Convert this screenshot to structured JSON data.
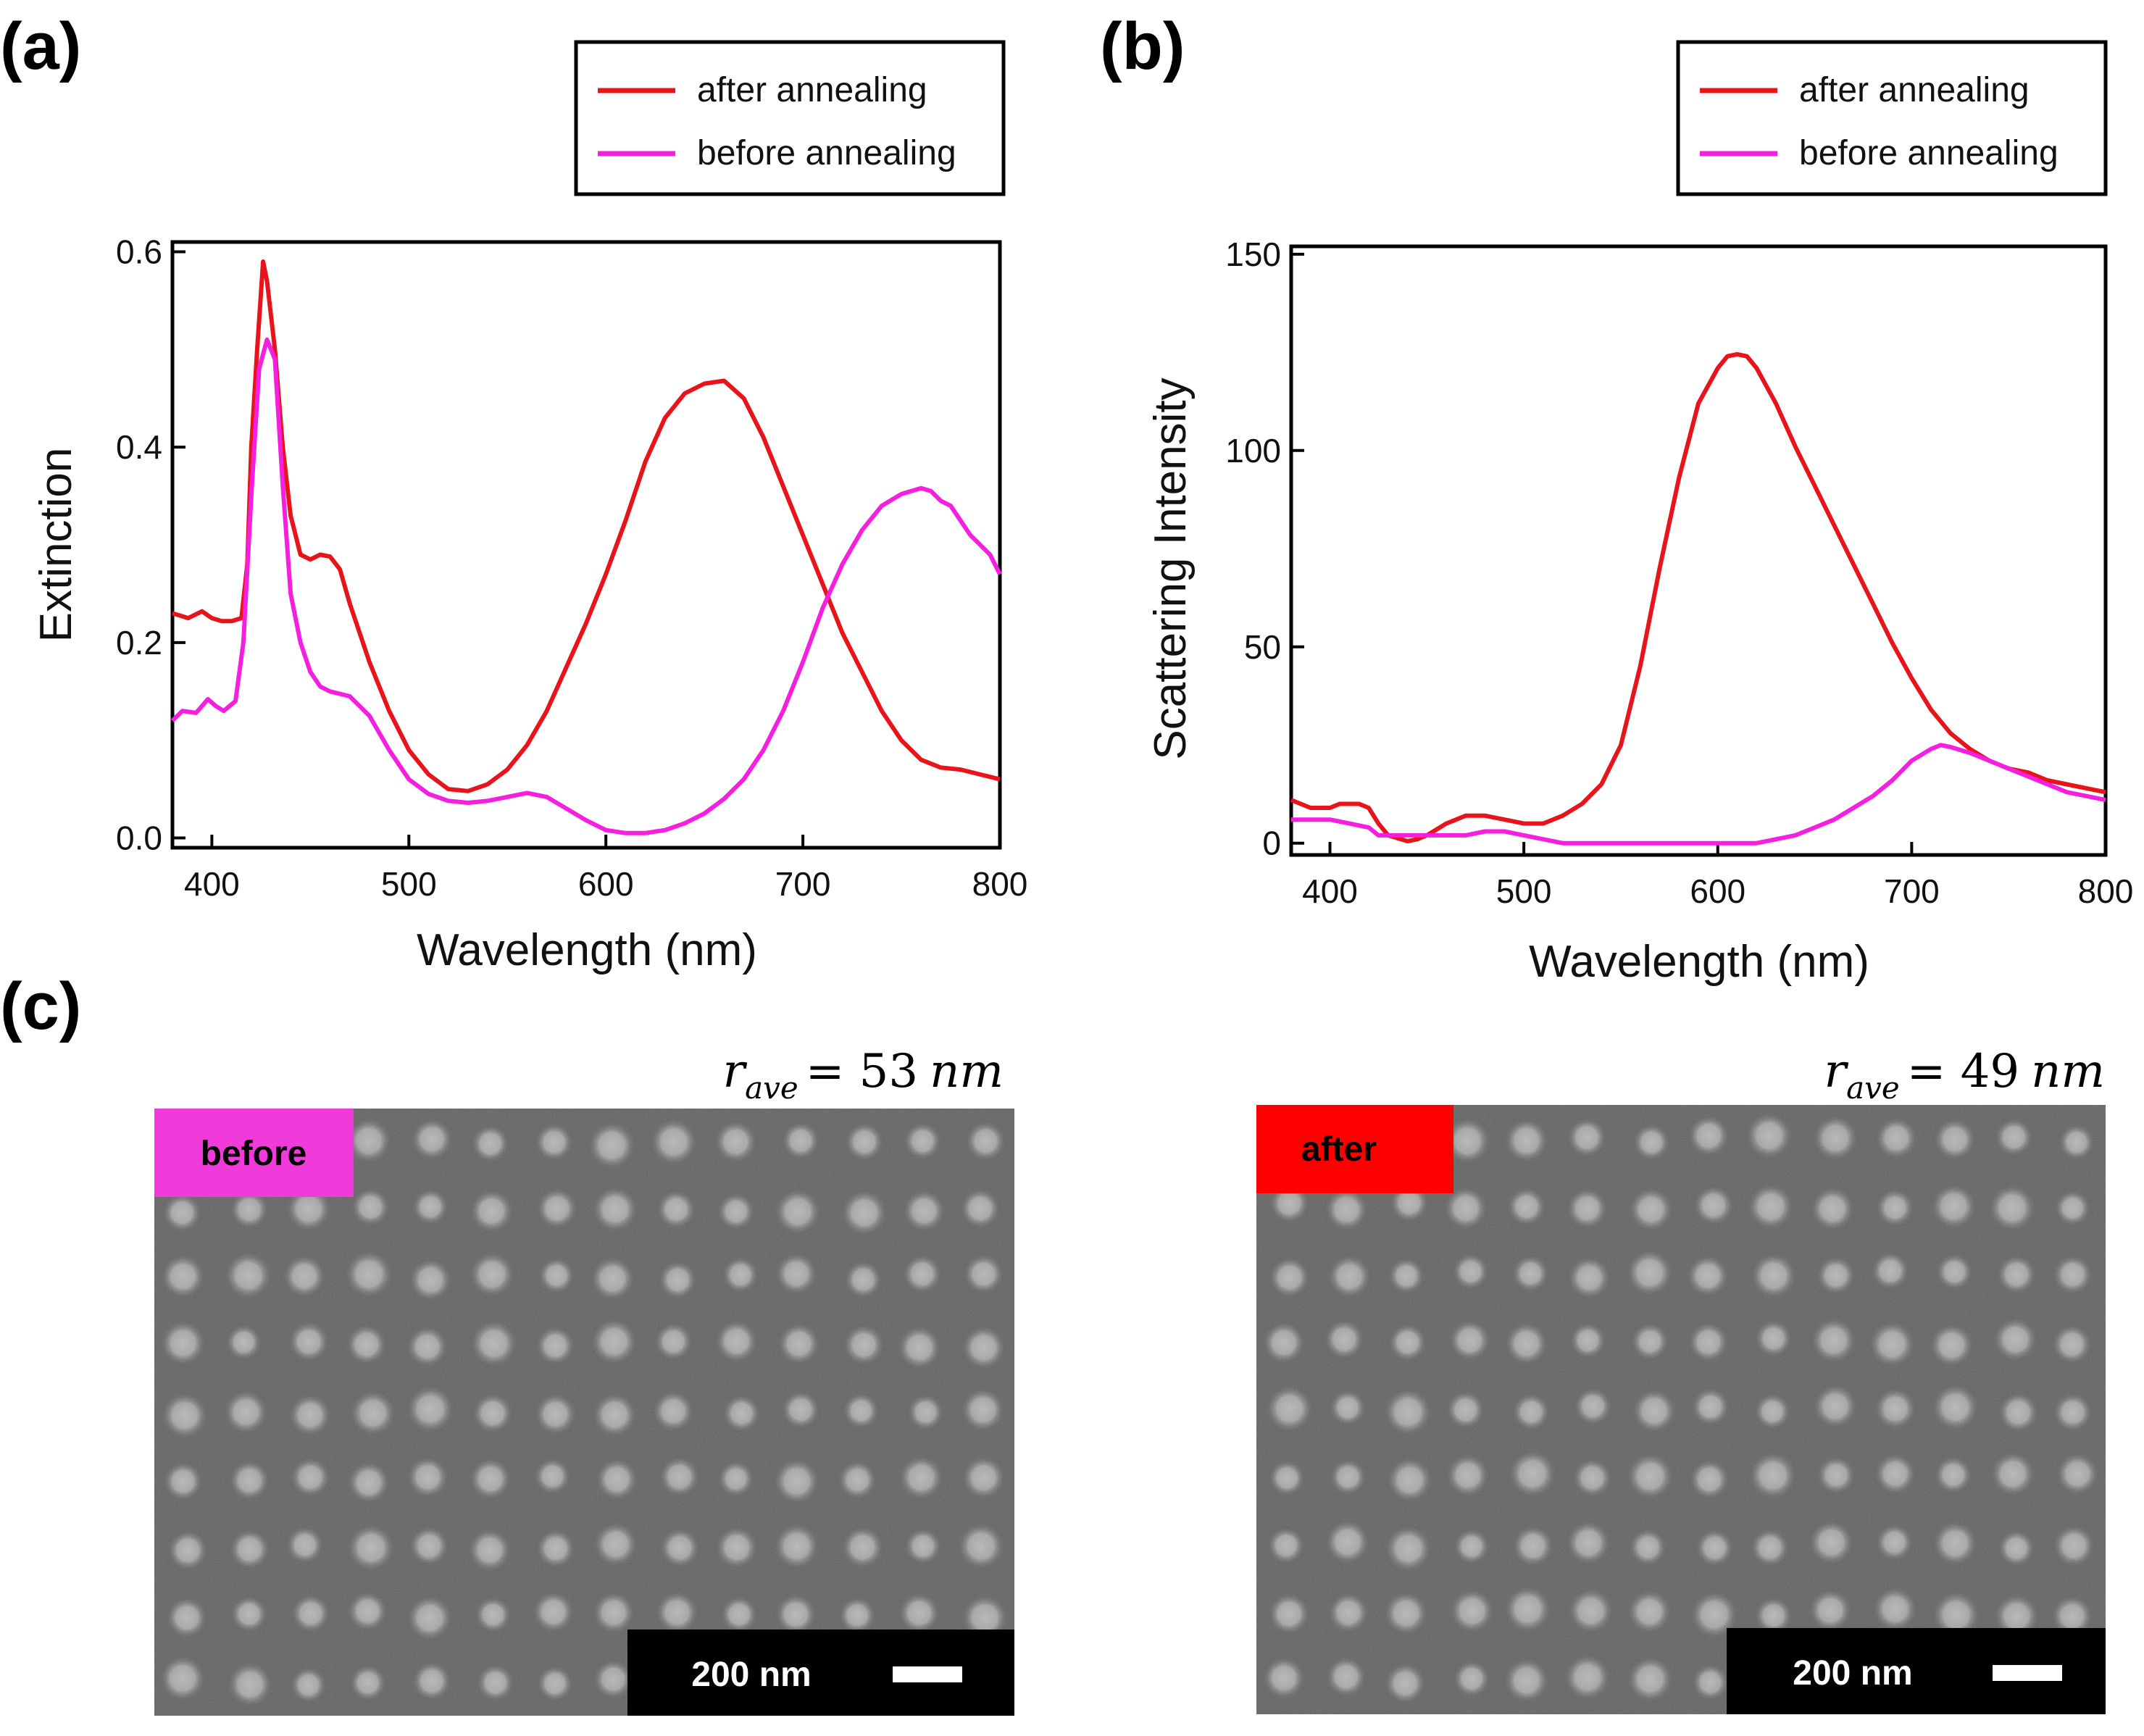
{
  "panels": {
    "a": "(a)",
    "b": "(b)",
    "c": "(c)"
  },
  "legend": {
    "after": "after annealing",
    "before": "before annealing"
  },
  "colors": {
    "after": "#e8141c",
    "before": "#f51fe0"
  },
  "chart_data": [
    {
      "id": "a",
      "type": "line",
      "xlabel": "Wavelength (nm)",
      "ylabel": "Extinction",
      "xlim": [
        380,
        800
      ],
      "ylim": [
        -0.01,
        0.61
      ],
      "xticks": [
        400,
        500,
        600,
        700,
        800
      ],
      "yticks": [
        0.0,
        0.2,
        0.4,
        0.6
      ],
      "ytick_labels": [
        "0.0",
        "0.2",
        "0.4",
        "0.6"
      ],
      "legend_position": "top-right",
      "series": [
        {
          "name": "after annealing",
          "key": "after",
          "x": [
            380,
            388,
            395,
            400,
            405,
            410,
            415,
            418,
            420,
            423,
            426,
            428,
            432,
            436,
            440,
            445,
            450,
            455,
            460,
            465,
            470,
            480,
            490,
            500,
            510,
            520,
            530,
            540,
            550,
            560,
            570,
            580,
            590,
            600,
            610,
            620,
            630,
            640,
            650,
            660,
            670,
            680,
            690,
            700,
            710,
            720,
            730,
            740,
            750,
            760,
            770,
            780,
            790,
            800
          ],
          "y": [
            0.23,
            0.225,
            0.232,
            0.225,
            0.222,
            0.222,
            0.225,
            0.28,
            0.4,
            0.5,
            0.59,
            0.57,
            0.5,
            0.4,
            0.33,
            0.29,
            0.285,
            0.29,
            0.288,
            0.275,
            0.24,
            0.18,
            0.13,
            0.09,
            0.065,
            0.05,
            0.048,
            0.055,
            0.07,
            0.095,
            0.13,
            0.175,
            0.22,
            0.27,
            0.325,
            0.385,
            0.43,
            0.455,
            0.465,
            0.468,
            0.45,
            0.41,
            0.36,
            0.31,
            0.26,
            0.21,
            0.17,
            0.13,
            0.1,
            0.08,
            0.072,
            0.07,
            0.065,
            0.06
          ]
        },
        {
          "name": "before annealing",
          "key": "before",
          "x": [
            380,
            385,
            392,
            398,
            402,
            406,
            412,
            416,
            420,
            424,
            428,
            432,
            436,
            440,
            445,
            450,
            455,
            460,
            470,
            480,
            490,
            500,
            510,
            520,
            530,
            540,
            550,
            560,
            570,
            580,
            590,
            600,
            610,
            620,
            630,
            640,
            650,
            660,
            670,
            680,
            690,
            700,
            710,
            720,
            730,
            740,
            750,
            760,
            765,
            770,
            775,
            780,
            785,
            790,
            795,
            800
          ],
          "y": [
            0.12,
            0.13,
            0.128,
            0.142,
            0.135,
            0.13,
            0.14,
            0.2,
            0.35,
            0.48,
            0.51,
            0.49,
            0.36,
            0.25,
            0.2,
            0.17,
            0.155,
            0.15,
            0.145,
            0.125,
            0.09,
            0.06,
            0.045,
            0.038,
            0.036,
            0.038,
            0.042,
            0.046,
            0.042,
            0.03,
            0.018,
            0.008,
            0.005,
            0.005,
            0.008,
            0.015,
            0.025,
            0.04,
            0.06,
            0.09,
            0.13,
            0.18,
            0.235,
            0.28,
            0.315,
            0.34,
            0.352,
            0.358,
            0.355,
            0.345,
            0.34,
            0.325,
            0.31,
            0.3,
            0.29,
            0.27
          ]
        }
      ]
    },
    {
      "id": "b",
      "type": "line",
      "xlabel": "Wavelength (nm)",
      "ylabel": "Scattering Intensity",
      "xlim": [
        380,
        800
      ],
      "ylim": [
        -3,
        152
      ],
      "xticks": [
        400,
        500,
        600,
        700,
        800
      ],
      "yticks": [
        0,
        50,
        100,
        150
      ],
      "ytick_labels": [
        "0",
        "50",
        "100",
        "150"
      ],
      "legend_position": "top-right",
      "series": [
        {
          "name": "after annealing",
          "key": "after",
          "x": [
            380,
            390,
            400,
            405,
            410,
            415,
            420,
            425,
            430,
            440,
            445,
            450,
            460,
            470,
            480,
            490,
            500,
            510,
            520,
            530,
            540,
            550,
            560,
            570,
            580,
            590,
            600,
            605,
            610,
            615,
            620,
            630,
            640,
            650,
            660,
            670,
            680,
            690,
            700,
            710,
            720,
            730,
            740,
            750,
            760,
            770,
            780,
            790,
            800
          ],
          "y": [
            11,
            9,
            9,
            10,
            10,
            10,
            9,
            5,
            2,
            0.5,
            1,
            2,
            5,
            7,
            7,
            6,
            5,
            5,
            7,
            10,
            15,
            25,
            45,
            70,
            93,
            112,
            121,
            124,
            124.5,
            124,
            121,
            112,
            101,
            91,
            81,
            71,
            61,
            51,
            42,
            34,
            28,
            24,
            21,
            19,
            18,
            16,
            15,
            14,
            13
          ]
        },
        {
          "name": "before annealing",
          "key": "before",
          "x": [
            380,
            390,
            400,
            410,
            420,
            425,
            430,
            440,
            450,
            460,
            470,
            480,
            490,
            500,
            510,
            520,
            530,
            540,
            560,
            580,
            600,
            620,
            630,
            640,
            650,
            660,
            670,
            680,
            690,
            700,
            710,
            715,
            720,
            730,
            740,
            750,
            760,
            770,
            780,
            790,
            800
          ],
          "y": [
            6,
            6,
            6,
            5,
            4,
            2,
            2,
            2,
            2,
            2,
            2,
            3,
            3,
            2,
            1,
            0,
            0,
            0,
            0,
            0,
            0,
            0,
            1,
            2,
            4,
            6,
            9,
            12,
            16,
            21,
            24,
            25,
            24.5,
            23,
            21,
            19,
            17,
            15,
            13,
            12,
            11
          ]
        }
      ]
    }
  ],
  "sem": {
    "left": {
      "r_ave_label": "r",
      "r_ave_sub": "ave",
      "r_ave_eq": "= 53",
      "r_ave_unit": "nm",
      "badge": "before",
      "scale_bar": "200 nm"
    },
    "right": {
      "r_ave_label": "r",
      "r_ave_sub": "ave",
      "r_ave_eq": "= 49",
      "r_ave_unit": "nm",
      "badge": "after",
      "scale_bar": "200 nm"
    }
  }
}
